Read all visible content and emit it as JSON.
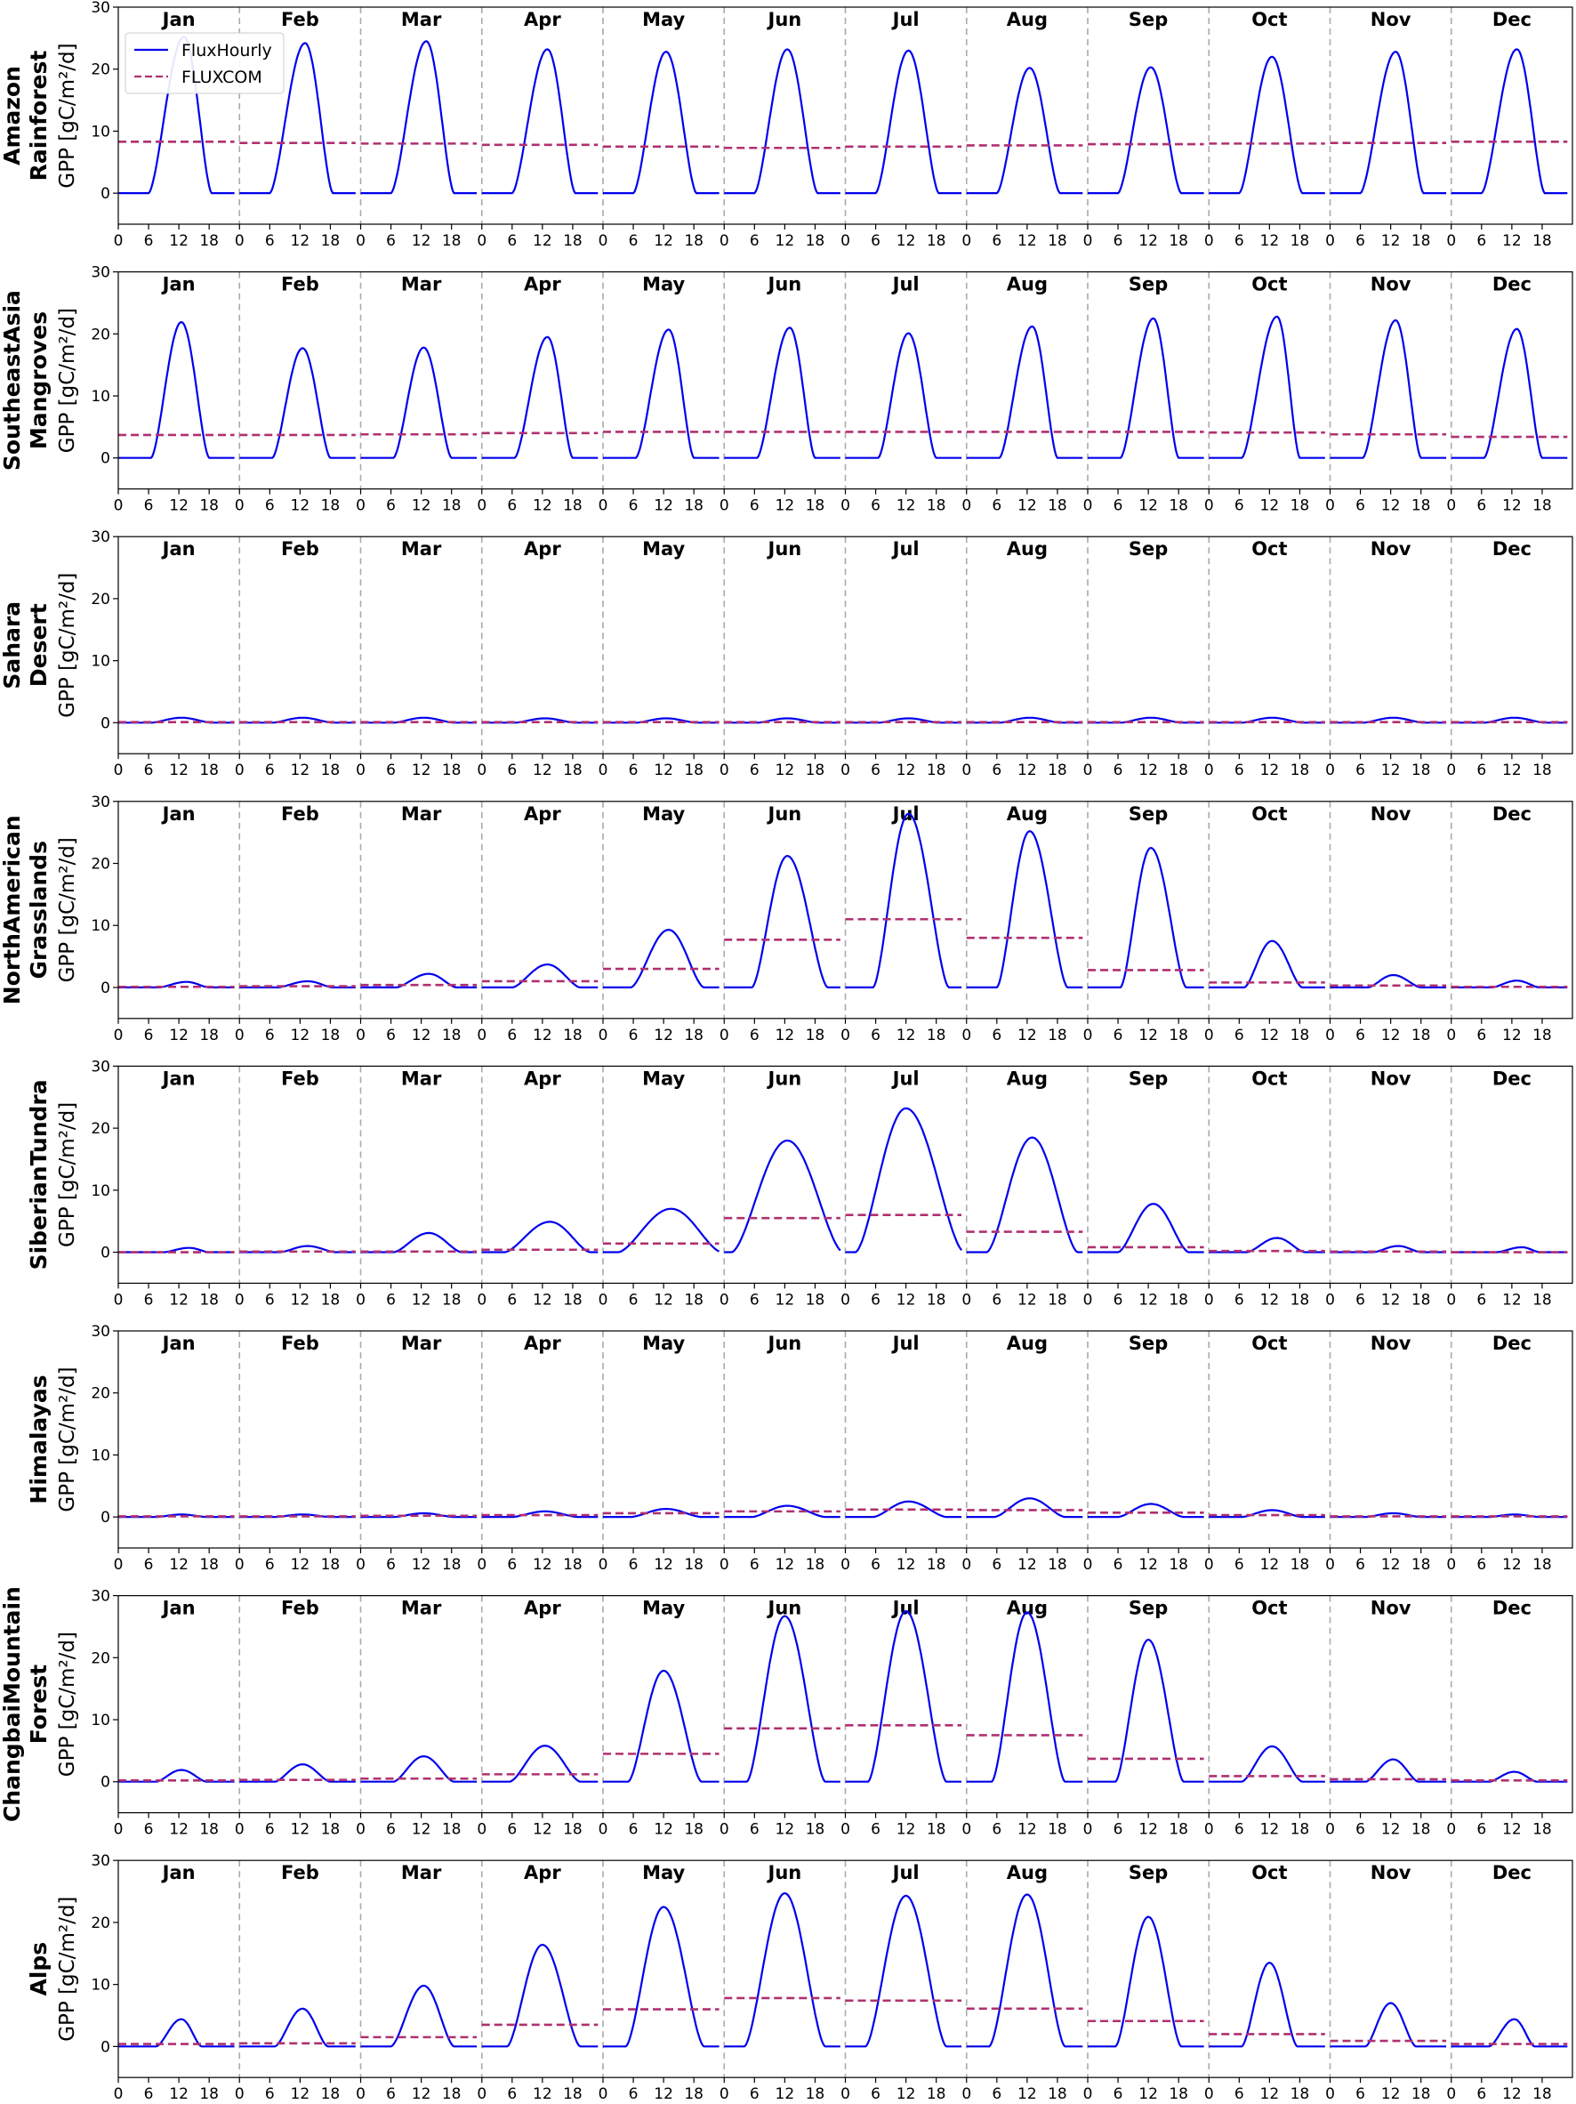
{
  "chart_data": {
    "type": "line",
    "months": [
      "Jan",
      "Feb",
      "Mar",
      "Apr",
      "May",
      "Jun",
      "Jul",
      "Aug",
      "Sep",
      "Oct",
      "Nov",
      "Dec"
    ],
    "x_tick_labels": [
      "0",
      "6",
      "12",
      "18"
    ],
    "x_ticks_hours": [
      0,
      6,
      12,
      18
    ],
    "ylim": [
      -5,
      30
    ],
    "y_ticks": [
      0,
      10,
      20,
      30
    ],
    "ylabel": "GPP [gC/m²/d]",
    "legend": {
      "placement": "top-left of first panel",
      "entries": [
        "FluxHourly",
        "FLUXCOM"
      ]
    },
    "colors": {
      "fluxhourly": "#0000ee",
      "fluxcom": "#b03070",
      "month_separator": "#aaaaaa"
    },
    "regions": [
      {
        "label": [
          "Amazon",
          "Rainforest"
        ],
        "fluxhourly": [
          {
            "rise": 6,
            "peak_hour": 13,
            "peak": 25.2,
            "set": 18.5,
            "baseline": 0
          },
          {
            "rise": 6,
            "peak_hour": 13,
            "peak": 24.2,
            "set": 18.5,
            "baseline": 0
          },
          {
            "rise": 6,
            "peak_hour": 13,
            "peak": 24.5,
            "set": 18.5,
            "baseline": 0
          },
          {
            "rise": 6,
            "peak_hour": 13,
            "peak": 23.2,
            "set": 18.5,
            "baseline": 0
          },
          {
            "rise": 6,
            "peak_hour": 12.5,
            "peak": 22.8,
            "set": 18.5,
            "baseline": 0
          },
          {
            "rise": 6,
            "peak_hour": 12.5,
            "peak": 23.2,
            "set": 18.5,
            "baseline": 0
          },
          {
            "rise": 6,
            "peak_hour": 12.5,
            "peak": 23.0,
            "set": 18.5,
            "baseline": 0
          },
          {
            "rise": 6,
            "peak_hour": 12.5,
            "peak": 20.2,
            "set": 18.5,
            "baseline": 0
          },
          {
            "rise": 6,
            "peak_hour": 12.5,
            "peak": 20.3,
            "set": 18.5,
            "baseline": 0
          },
          {
            "rise": 6,
            "peak_hour": 12.5,
            "peak": 22.0,
            "set": 18.5,
            "baseline": 0
          },
          {
            "rise": 6,
            "peak_hour": 13,
            "peak": 22.8,
            "set": 18.5,
            "baseline": 0
          },
          {
            "rise": 6,
            "peak_hour": 13,
            "peak": 23.2,
            "set": 18.5,
            "baseline": 0
          }
        ],
        "fluxcom": [
          8.3,
          8.1,
          8.0,
          7.8,
          7.5,
          7.3,
          7.5,
          7.7,
          7.9,
          8.0,
          8.1,
          8.3
        ]
      },
      {
        "label": [
          "SoutheastAsia",
          "Mangroves"
        ],
        "fluxhourly": [
          {
            "rise": 6.5,
            "peak_hour": 12.5,
            "peak": 21.9,
            "set": 18,
            "baseline": 0
          },
          {
            "rise": 6.5,
            "peak_hour": 12.5,
            "peak": 17.7,
            "set": 18,
            "baseline": 0
          },
          {
            "rise": 6.5,
            "peak_hour": 12.5,
            "peak": 17.8,
            "set": 18,
            "baseline": 0
          },
          {
            "rise": 6.5,
            "peak_hour": 13,
            "peak": 19.5,
            "set": 18,
            "baseline": 0
          },
          {
            "rise": 6.5,
            "peak_hour": 13,
            "peak": 20.7,
            "set": 18,
            "baseline": 0
          },
          {
            "rise": 6.5,
            "peak_hour": 13,
            "peak": 21.0,
            "set": 18,
            "baseline": 0
          },
          {
            "rise": 6.5,
            "peak_hour": 12.5,
            "peak": 20.1,
            "set": 18,
            "baseline": 0
          },
          {
            "rise": 6.5,
            "peak_hour": 13,
            "peak": 21.2,
            "set": 18,
            "baseline": 0
          },
          {
            "rise": 6.5,
            "peak_hour": 13,
            "peak": 22.5,
            "set": 18,
            "baseline": 0
          },
          {
            "rise": 6.5,
            "peak_hour": 13.5,
            "peak": 22.8,
            "set": 18,
            "baseline": 0
          },
          {
            "rise": 6.5,
            "peak_hour": 13,
            "peak": 22.2,
            "set": 18,
            "baseline": 0
          },
          {
            "rise": 6.5,
            "peak_hour": 13,
            "peak": 20.8,
            "set": 18,
            "baseline": 0
          }
        ],
        "fluxcom": [
          3.7,
          3.7,
          3.8,
          4.0,
          4.2,
          4.2,
          4.2,
          4.2,
          4.2,
          4.1,
          3.8,
          3.4
        ]
      },
      {
        "label": [
          "Sahara",
          "Desert"
        ],
        "fluxhourly": [
          {
            "rise": 6.5,
            "peak_hour": 12.5,
            "peak": 0.8,
            "set": 18.5,
            "baseline": 0
          },
          {
            "rise": 6.5,
            "peak_hour": 12.5,
            "peak": 0.8,
            "set": 18.5,
            "baseline": 0
          },
          {
            "rise": 6.5,
            "peak_hour": 12.5,
            "peak": 0.8,
            "set": 18.5,
            "baseline": 0
          },
          {
            "rise": 6.5,
            "peak_hour": 12.5,
            "peak": 0.7,
            "set": 18.5,
            "baseline": 0
          },
          {
            "rise": 6.5,
            "peak_hour": 12.5,
            "peak": 0.7,
            "set": 18.5,
            "baseline": 0
          },
          {
            "rise": 6.5,
            "peak_hour": 12.5,
            "peak": 0.7,
            "set": 18.5,
            "baseline": 0
          },
          {
            "rise": 6.5,
            "peak_hour": 12.5,
            "peak": 0.7,
            "set": 18.5,
            "baseline": 0
          },
          {
            "rise": 6.5,
            "peak_hour": 12.5,
            "peak": 0.8,
            "set": 18.5,
            "baseline": 0
          },
          {
            "rise": 6.5,
            "peak_hour": 12.5,
            "peak": 0.8,
            "set": 18.5,
            "baseline": 0
          },
          {
            "rise": 6.5,
            "peak_hour": 12.5,
            "peak": 0.8,
            "set": 18.5,
            "baseline": 0
          },
          {
            "rise": 6.5,
            "peak_hour": 12.5,
            "peak": 0.8,
            "set": 18.5,
            "baseline": 0
          },
          {
            "rise": 6.5,
            "peak_hour": 12.5,
            "peak": 0.8,
            "set": 18.5,
            "baseline": 0
          }
        ],
        "fluxcom": [
          0.1,
          0.1,
          0.1,
          0.1,
          0.1,
          0.1,
          0.1,
          0.1,
          0.1,
          0.1,
          0.1,
          0.1
        ]
      },
      {
        "label": [
          "NorthAmerican",
          "Grasslands"
        ],
        "fluxhourly": [
          {
            "rise": 8,
            "peak_hour": 13.5,
            "peak": 0.9,
            "set": 18,
            "baseline": 0
          },
          {
            "rise": 7.5,
            "peak_hour": 13.5,
            "peak": 1.0,
            "set": 18.5,
            "baseline": 0
          },
          {
            "rise": 7,
            "peak_hour": 13.5,
            "peak": 2.2,
            "set": 19,
            "baseline": 0
          },
          {
            "rise": 6,
            "peak_hour": 13,
            "peak": 3.7,
            "set": 19.5,
            "baseline": 0
          },
          {
            "rise": 5.5,
            "peak_hour": 13,
            "peak": 9.3,
            "set": 20,
            "baseline": 0
          },
          {
            "rise": 5.5,
            "peak_hour": 12.5,
            "peak": 21.2,
            "set": 20.5,
            "baseline": 0
          },
          {
            "rise": 5.5,
            "peak_hour": 12.5,
            "peak": 28.0,
            "set": 20.5,
            "baseline": 0
          },
          {
            "rise": 6,
            "peak_hour": 12.5,
            "peak": 25.2,
            "set": 20,
            "baseline": 0
          },
          {
            "rise": 6.5,
            "peak_hour": 12.5,
            "peak": 22.5,
            "set": 19.5,
            "baseline": 0
          },
          {
            "rise": 7,
            "peak_hour": 12.5,
            "peak": 7.5,
            "set": 18.5,
            "baseline": 0
          },
          {
            "rise": 7.5,
            "peak_hour": 12.5,
            "peak": 2.0,
            "set": 18,
            "baseline": 0
          },
          {
            "rise": 8,
            "peak_hour": 13,
            "peak": 1.1,
            "set": 17.5,
            "baseline": 0
          }
        ],
        "fluxcom": [
          0.1,
          0.2,
          0.4,
          1.0,
          3.0,
          7.7,
          11.0,
          8.0,
          2.8,
          0.8,
          0.3,
          0.1
        ]
      },
      {
        "label": [
          "SiberianTundra"
        ],
        "fluxhourly": [
          {
            "rise": 9,
            "peak_hour": 14,
            "peak": 0.7,
            "set": 18,
            "baseline": 0
          },
          {
            "rise": 8,
            "peak_hour": 13.5,
            "peak": 1.0,
            "set": 19,
            "baseline": 0
          },
          {
            "rise": 6.5,
            "peak_hour": 13.5,
            "peak": 3.1,
            "set": 20,
            "baseline": 0
          },
          {
            "rise": 4.5,
            "peak_hour": 13.5,
            "peak": 4.9,
            "set": 21.5,
            "baseline": 0
          },
          {
            "rise": 3,
            "peak_hour": 13.5,
            "peak": 7.0,
            "set": 23.5,
            "baseline": 0
          },
          {
            "rise": 1.5,
            "peak_hour": 12.5,
            "peak": 18.0,
            "set": 23.5,
            "baseline": 0
          },
          {
            "rise": 2,
            "peak_hour": 12,
            "peak": 23.2,
            "set": 23.5,
            "baseline": 0
          },
          {
            "rise": 4,
            "peak_hour": 13,
            "peak": 18.5,
            "set": 22,
            "baseline": 0
          },
          {
            "rise": 6,
            "peak_hour": 13,
            "peak": 7.8,
            "set": 20,
            "baseline": 0
          },
          {
            "rise": 7.5,
            "peak_hour": 13.5,
            "peak": 2.3,
            "set": 19,
            "baseline": 0
          },
          {
            "rise": 8.5,
            "peak_hour": 13.5,
            "peak": 1.0,
            "set": 18,
            "baseline": 0
          },
          {
            "rise": 9,
            "peak_hour": 14,
            "peak": 0.8,
            "set": 17.5,
            "baseline": 0
          }
        ],
        "fluxcom": [
          0.0,
          0.1,
          0.1,
          0.4,
          1.4,
          5.5,
          6.0,
          3.3,
          0.8,
          0.2,
          0.1,
          0.0
        ]
      },
      {
        "label": [
          "Himalayas"
        ],
        "fluxhourly": [
          {
            "rise": 7.5,
            "peak_hour": 12.5,
            "peak": 0.4,
            "set": 17.5,
            "baseline": 0
          },
          {
            "rise": 7,
            "peak_hour": 12.5,
            "peak": 0.4,
            "set": 18,
            "baseline": 0
          },
          {
            "rise": 6.5,
            "peak_hour": 12.5,
            "peak": 0.6,
            "set": 18.5,
            "baseline": 0
          },
          {
            "rise": 6,
            "peak_hour": 12.5,
            "peak": 0.9,
            "set": 19,
            "baseline": 0
          },
          {
            "rise": 5.5,
            "peak_hour": 12.5,
            "peak": 1.3,
            "set": 19.5,
            "baseline": 0
          },
          {
            "rise": 5.5,
            "peak_hour": 12.5,
            "peak": 1.8,
            "set": 20,
            "baseline": 0
          },
          {
            "rise": 5.5,
            "peak_hour": 12.5,
            "peak": 2.5,
            "set": 20,
            "baseline": 0
          },
          {
            "rise": 5.5,
            "peak_hour": 12.5,
            "peak": 3.0,
            "set": 19.5,
            "baseline": 0
          },
          {
            "rise": 6,
            "peak_hour": 12.5,
            "peak": 2.1,
            "set": 19,
            "baseline": 0
          },
          {
            "rise": 6.5,
            "peak_hour": 12.5,
            "peak": 1.1,
            "set": 18.5,
            "baseline": 0
          },
          {
            "rise": 7,
            "peak_hour": 12.5,
            "peak": 0.6,
            "set": 18,
            "baseline": 0
          },
          {
            "rise": 7.5,
            "peak_hour": 12.5,
            "peak": 0.4,
            "set": 17.5,
            "baseline": 0
          }
        ],
        "fluxcom": [
          0.1,
          0.1,
          0.2,
          0.3,
          0.6,
          0.9,
          1.2,
          1.1,
          0.7,
          0.3,
          0.1,
          0.1
        ]
      },
      {
        "label": [
          "ChangbaiMountain",
          "Forest"
        ],
        "fluxhourly": [
          {
            "rise": 7.5,
            "peak_hour": 12.5,
            "peak": 1.9,
            "set": 17.5,
            "baseline": 0
          },
          {
            "rise": 7,
            "peak_hour": 12.5,
            "peak": 2.8,
            "set": 18,
            "baseline": 0
          },
          {
            "rise": 6.5,
            "peak_hour": 12.5,
            "peak": 4.1,
            "set": 18.5,
            "baseline": 0
          },
          {
            "rise": 5.5,
            "peak_hour": 12.5,
            "peak": 5.8,
            "set": 19.5,
            "baseline": 0
          },
          {
            "rise": 5,
            "peak_hour": 12,
            "peak": 17.9,
            "set": 19.5,
            "baseline": 0
          },
          {
            "rise": 4.5,
            "peak_hour": 12,
            "peak": 26.7,
            "set": 20,
            "baseline": 0
          },
          {
            "rise": 4.5,
            "peak_hour": 12,
            "peak": 27.5,
            "set": 20,
            "baseline": 0
          },
          {
            "rise": 5,
            "peak_hour": 12,
            "peak": 27.3,
            "set": 19.5,
            "baseline": 0
          },
          {
            "rise": 5.5,
            "peak_hour": 12,
            "peak": 22.9,
            "set": 19,
            "baseline": 0
          },
          {
            "rise": 6.5,
            "peak_hour": 12.5,
            "peak": 5.7,
            "set": 18.5,
            "baseline": 0
          },
          {
            "rise": 7,
            "peak_hour": 12.5,
            "peak": 3.6,
            "set": 17.5,
            "baseline": 0
          },
          {
            "rise": 7.5,
            "peak_hour": 12.5,
            "peak": 1.6,
            "set": 17,
            "baseline": 0
          }
        ],
        "fluxcom": [
          0.2,
          0.3,
          0.5,
          1.2,
          4.5,
          8.6,
          9.1,
          7.5,
          3.7,
          0.9,
          0.4,
          0.2
        ]
      },
      {
        "label": [
          "Alps"
        ],
        "fluxhourly": [
          {
            "rise": 7.5,
            "peak_hour": 12.5,
            "peak": 4.4,
            "set": 16.5,
            "baseline": 0
          },
          {
            "rise": 7,
            "peak_hour": 12.5,
            "peak": 6.1,
            "set": 17.5,
            "baseline": 0
          },
          {
            "rise": 6,
            "peak_hour": 12.5,
            "peak": 9.8,
            "set": 18.5,
            "baseline": 0
          },
          {
            "rise": 5,
            "peak_hour": 12,
            "peak": 16.4,
            "set": 19.5,
            "baseline": 0
          },
          {
            "rise": 4.5,
            "peak_hour": 12,
            "peak": 22.5,
            "set": 20,
            "baseline": 0
          },
          {
            "rise": 4,
            "peak_hour": 12,
            "peak": 24.7,
            "set": 20,
            "baseline": 0
          },
          {
            "rise": 4,
            "peak_hour": 12,
            "peak": 24.3,
            "set": 20,
            "baseline": 0
          },
          {
            "rise": 4.5,
            "peak_hour": 12,
            "peak": 24.5,
            "set": 19.5,
            "baseline": 0
          },
          {
            "rise": 5.5,
            "peak_hour": 12,
            "peak": 20.9,
            "set": 18.5,
            "baseline": 0
          },
          {
            "rise": 6.5,
            "peak_hour": 12,
            "peak": 13.5,
            "set": 17.5,
            "baseline": 0
          },
          {
            "rise": 7,
            "peak_hour": 12,
            "peak": 7.0,
            "set": 17,
            "baseline": 0
          },
          {
            "rise": 7.5,
            "peak_hour": 12.5,
            "peak": 4.4,
            "set": 16.5,
            "baseline": 0
          }
        ],
        "fluxcom": [
          0.4,
          0.5,
          1.5,
          3.5,
          6.0,
          7.8,
          7.4,
          6.1,
          4.1,
          2.0,
          0.9,
          0.4
        ]
      }
    ]
  }
}
